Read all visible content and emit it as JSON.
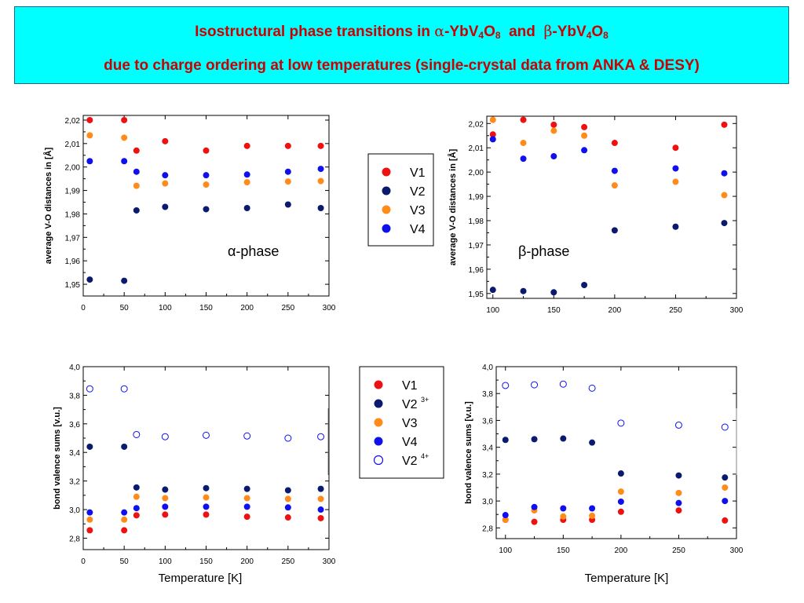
{
  "slide": {
    "title_line1": {
      "pre": "Isostructural  phase  transitions  in  ",
      "alpha": "α",
      "mid1": "-YbV",
      "sub1": "4",
      "mid2": "O",
      "sub2": "8",
      "and": "  and  ",
      "beta": "β",
      "mid3": "-YbV",
      "sub3": "4",
      "mid4": "O",
      "sub4": "8"
    },
    "title_line2": "due  to  charge  ordering  at  low  temperatures  (single-crystal  data  from  ANKA & DESY)",
    "colors": {
      "title_bg": "#00ffff",
      "title_text": "#cc0000"
    }
  },
  "series_colors": {
    "V1": "#ee1111",
    "V2": "#0a1a6e",
    "V3": "#ff8c1a",
    "V4": "#1010ee",
    "V2_4plus": "#1010ee"
  },
  "legend_top": {
    "entries": [
      "V1",
      "V2",
      "V3",
      "V4"
    ]
  },
  "legend_bottom": {
    "entries": [
      "V1",
      "V2",
      "V3",
      "V4",
      "V2"
    ],
    "superscripts": [
      "",
      "3+",
      "",
      "",
      "4+"
    ]
  },
  "chart_data": [
    {
      "type": "scatter",
      "title": "",
      "annotation": "α-phase",
      "xlabel": "",
      "ylabel": "average V-O distances in [Å]",
      "xlim": [
        0,
        300
      ],
      "ylim": [
        1.945,
        2.022
      ],
      "xticks": [
        "0",
        "50",
        "100",
        "150",
        "200",
        "250",
        "300"
      ],
      "yticks": [
        "1,95",
        "1,96",
        "1,97",
        "1,98",
        "1,99",
        "2,00",
        "2,01",
        "2,02"
      ],
      "series": [
        {
          "name": "V1",
          "x": [
            8,
            50,
            65,
            100,
            150,
            200,
            250,
            290
          ],
          "values": [
            2.02,
            2.02,
            2.007,
            2.011,
            2.007,
            2.009,
            2.009,
            2.009
          ]
        },
        {
          "name": "V2",
          "x": [
            8,
            50,
            65,
            100,
            150,
            200,
            250,
            290
          ],
          "values": [
            1.952,
            1.9515,
            1.9815,
            1.983,
            1.982,
            1.9825,
            1.984,
            1.9825
          ]
        },
        {
          "name": "V3",
          "x": [
            8,
            50,
            65,
            100,
            150,
            200,
            250,
            290
          ],
          "values": [
            2.0135,
            2.0125,
            1.992,
            1.993,
            1.9925,
            1.9935,
            1.9938,
            1.994
          ]
        },
        {
          "name": "V4",
          "x": [
            8,
            50,
            65,
            100,
            150,
            200,
            250,
            290
          ],
          "values": [
            2.0025,
            2.0025,
            1.998,
            1.9965,
            1.9965,
            1.9968,
            1.998,
            1.9992
          ]
        }
      ]
    },
    {
      "type": "scatter",
      "title": "",
      "annotation": "β-phase",
      "xlabel": "",
      "ylabel": "average V-O distances in [Å]",
      "xlim": [
        95,
        300
      ],
      "ylim": [
        1.948,
        2.023
      ],
      "xticks": [
        "100",
        "150",
        "200",
        "250",
        "300"
      ],
      "yticks": [
        "1,95",
        "1,96",
        "1,97",
        "1,98",
        "1,99",
        "2,00",
        "2,01",
        "2,02"
      ],
      "series": [
        {
          "name": "V1",
          "x": [
            100,
            125,
            150,
            175,
            200,
            250,
            290
          ],
          "values": [
            2.0155,
            2.0215,
            2.0195,
            2.0185,
            2.012,
            2.01,
            2.0195
          ]
        },
        {
          "name": "V2",
          "x": [
            100,
            125,
            150,
            175,
            200,
            250,
            290
          ],
          "values": [
            1.9515,
            1.951,
            1.9505,
            1.9535,
            1.976,
            1.9775,
            1.979
          ]
        },
        {
          "name": "V3",
          "x": [
            100,
            125,
            150,
            175,
            200,
            250,
            290
          ],
          "values": [
            2.0215,
            2.012,
            2.017,
            2.015,
            1.9945,
            1.996,
            1.9905
          ]
        },
        {
          "name": "V4",
          "x": [
            100,
            125,
            150,
            175,
            200,
            250,
            290
          ],
          "values": [
            2.0135,
            2.0055,
            2.0065,
            2.009,
            2.0005,
            2.0015,
            1.9995
          ]
        }
      ]
    },
    {
      "type": "scatter",
      "title": "",
      "xlabel": "Temperature [K]",
      "ylabel": "bond valence sums [v.u.]",
      "xlim": [
        0,
        300
      ],
      "ylim": [
        2.72,
        4.0
      ],
      "xticks": [
        "0",
        "50",
        "100",
        "150",
        "200",
        "250",
        "300"
      ],
      "yticks": [
        "2,8",
        "3,0",
        "3,2",
        "3,4",
        "3,6",
        "3,8",
        "4,0"
      ],
      "series": [
        {
          "name": "V1",
          "x": [
            8,
            50,
            65,
            100,
            150,
            200,
            250,
            290
          ],
          "values": [
            2.855,
            2.855,
            2.96,
            2.965,
            2.965,
            2.95,
            2.945,
            2.94
          ]
        },
        {
          "name": "V2",
          "x": [
            8,
            50,
            65,
            100,
            150,
            200,
            250,
            290
          ],
          "values": [
            3.44,
            3.44,
            3.155,
            3.14,
            3.15,
            3.145,
            3.135,
            3.145
          ]
        },
        {
          "name": "V3",
          "x": [
            8,
            50,
            65,
            100,
            150,
            200,
            250,
            290
          ],
          "values": [
            2.93,
            2.93,
            3.09,
            3.08,
            3.085,
            3.08,
            3.075,
            3.075
          ]
        },
        {
          "name": "V4",
          "x": [
            8,
            50,
            65,
            100,
            150,
            200,
            250,
            290
          ],
          "values": [
            2.98,
            2.98,
            3.01,
            3.02,
            3.02,
            3.02,
            3.015,
            3.0
          ]
        },
        {
          "name": "V2 4+",
          "marker": "open",
          "x": [
            8,
            50,
            65,
            100,
            150,
            200,
            250,
            290
          ],
          "values": [
            3.845,
            3.845,
            3.525,
            3.51,
            3.52,
            3.515,
            3.5,
            3.51
          ]
        }
      ]
    },
    {
      "type": "scatter",
      "title": "",
      "xlabel": "Temperature [K]",
      "ylabel": "bond valence sums [v.u.]",
      "xlim": [
        92,
        300
      ],
      "ylim": [
        2.72,
        4.0
      ],
      "xticks": [
        "100",
        "150",
        "200",
        "250",
        "300"
      ],
      "yticks": [
        "2,8",
        "3,0",
        "3,2",
        "3,4",
        "3,6",
        "3,8",
        "4,0"
      ],
      "series": [
        {
          "name": "V1",
          "x": [
            100,
            125,
            150,
            175,
            200,
            250,
            290
          ],
          "values": [
            2.86,
            2.845,
            2.86,
            2.86,
            2.92,
            2.93,
            2.855
          ]
        },
        {
          "name": "V2",
          "x": [
            100,
            125,
            150,
            175,
            200,
            250,
            290
          ],
          "values": [
            3.455,
            3.46,
            3.465,
            3.435,
            3.205,
            3.19,
            3.175
          ]
        },
        {
          "name": "V3",
          "x": [
            100,
            125,
            150,
            175,
            200,
            250,
            290
          ],
          "values": [
            2.86,
            2.93,
            2.885,
            2.89,
            3.07,
            3.06,
            3.1
          ]
        },
        {
          "name": "V4",
          "x": [
            100,
            125,
            150,
            175,
            200,
            250,
            290
          ],
          "values": [
            2.895,
            2.955,
            2.945,
            2.945,
            2.995,
            2.985,
            3.0
          ]
        },
        {
          "name": "V2 4+",
          "marker": "open",
          "x": [
            100,
            125,
            150,
            175,
            200,
            250,
            290
          ],
          "values": [
            3.86,
            3.865,
            3.87,
            3.84,
            3.58,
            3.565,
            3.55
          ]
        }
      ]
    }
  ]
}
